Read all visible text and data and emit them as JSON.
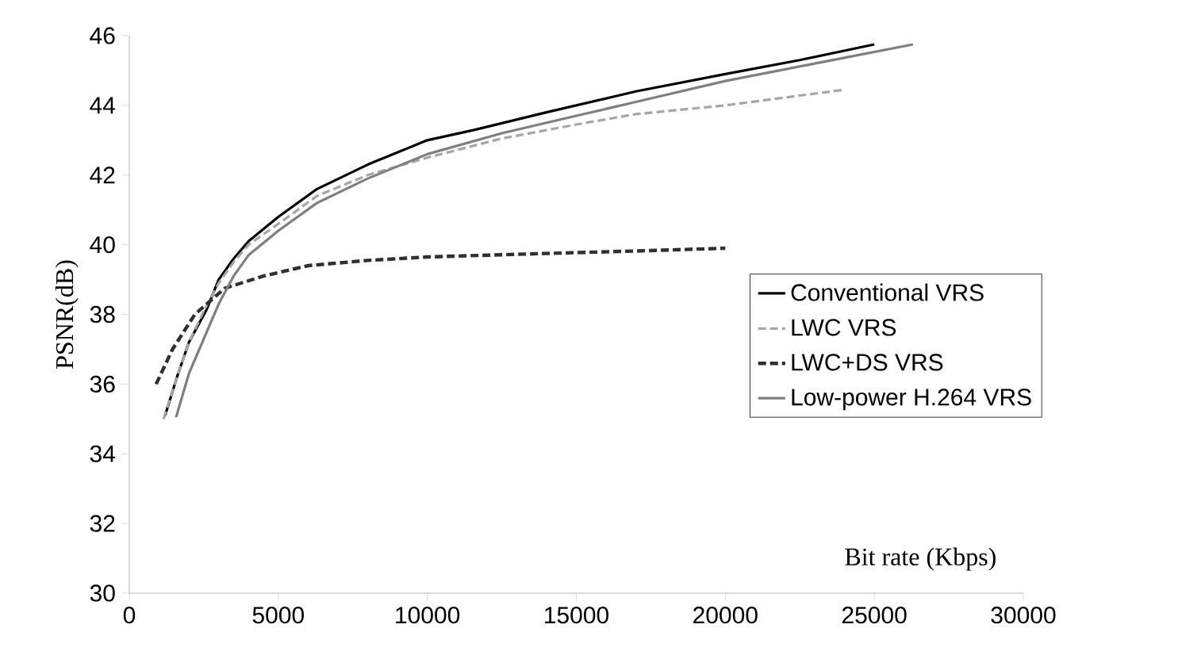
{
  "chart_data": {
    "type": "line",
    "xlabel": "Bit rate (Kbps)",
    "ylabel": "PSNR(dB)",
    "xlim": [
      0,
      30000
    ],
    "ylim": [
      30,
      46
    ],
    "xticks": [
      0,
      5000,
      10000,
      15000,
      20000,
      25000,
      30000
    ],
    "yticks": [
      30,
      32,
      34,
      36,
      38,
      40,
      42,
      44,
      46
    ],
    "legend": "right",
    "marker": "none",
    "series": [
      {
        "name": "Conventional VRS",
        "color": "#000000",
        "line_style": "solid",
        "x": [
          1200,
          1600,
          2000,
          2600,
          3000,
          3500,
          4000,
          5000,
          6300,
          8000,
          10000,
          11600,
          14000,
          17000,
          20000,
          22500,
          25000
        ],
        "values": [
          35.1,
          36.2,
          37.2,
          38.15,
          39.0,
          39.6,
          40.1,
          40.8,
          41.6,
          42.3,
          43.0,
          43.3,
          43.8,
          44.4,
          44.9,
          45.3,
          45.75
        ]
      },
      {
        "name": "LWC VRS",
        "color": "#a6a6a6",
        "line_style": "dashed",
        "x": [
          1150,
          1600,
          2000,
          2500,
          3000,
          3500,
          4000,
          5000,
          6300,
          8000,
          10000,
          12500,
          15000,
          17000,
          20000,
          24000
        ],
        "values": [
          35.0,
          36.2,
          37.2,
          38.1,
          38.9,
          39.5,
          40.0,
          40.6,
          41.4,
          42.0,
          42.5,
          43.05,
          43.45,
          43.75,
          44.0,
          44.45
        ]
      },
      {
        "name": "LWC+DS VRS",
        "color": "#303030",
        "line_style": "dashed",
        "x": [
          900,
          1450,
          2200,
          3200,
          4500,
          6000,
          8000,
          10000,
          14000,
          17000,
          20000
        ],
        "values": [
          36.0,
          37.0,
          38.0,
          38.75,
          39.1,
          39.4,
          39.55,
          39.65,
          39.75,
          39.82,
          39.9
        ]
      },
      {
        "name": "Low-power H.264 VRS",
        "color": "#7f7f7f",
        "line_style": "solid",
        "x": [
          1570,
          2000,
          2600,
          3000,
          3500,
          4000,
          5000,
          6300,
          8000,
          10000,
          12500,
          15000,
          17000,
          20000,
          23000,
          26300
        ],
        "values": [
          35.05,
          36.3,
          37.5,
          38.3,
          39.1,
          39.7,
          40.4,
          41.2,
          41.9,
          42.6,
          43.2,
          43.7,
          44.1,
          44.7,
          45.2,
          45.75
        ]
      }
    ]
  }
}
